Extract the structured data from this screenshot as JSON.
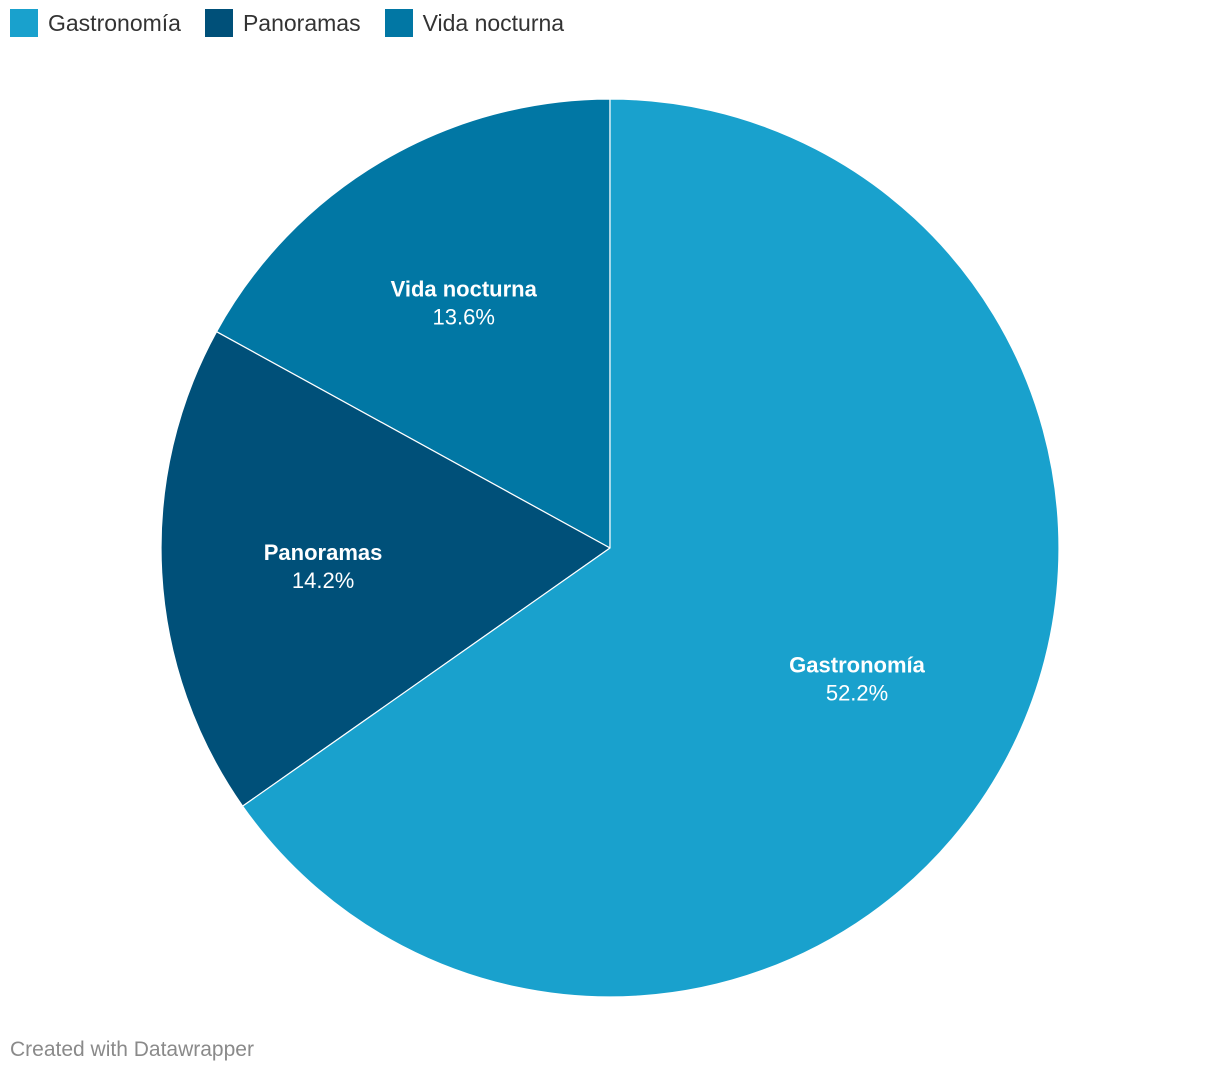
{
  "chart_data": {
    "type": "pie",
    "categories": [
      "Gastronomía",
      "Panoramas",
      "Vida nocturna"
    ],
    "values": [
      52.2,
      14.2,
      13.6
    ],
    "value_labels": [
      "52.2%",
      "14.2%",
      "13.6%"
    ],
    "colors": [
      "#19a1cd",
      "#005079",
      "#0177a4"
    ],
    "legend_position": "top-left",
    "title": ""
  },
  "legend": {
    "items": [
      {
        "label": "Gastronomía",
        "color": "#19a1cd"
      },
      {
        "label": "Panoramas",
        "color": "#005079"
      },
      {
        "label": "Vida nocturna",
        "color": "#0177a4"
      }
    ]
  },
  "footer": {
    "credit": "Created with Datawrapper"
  }
}
